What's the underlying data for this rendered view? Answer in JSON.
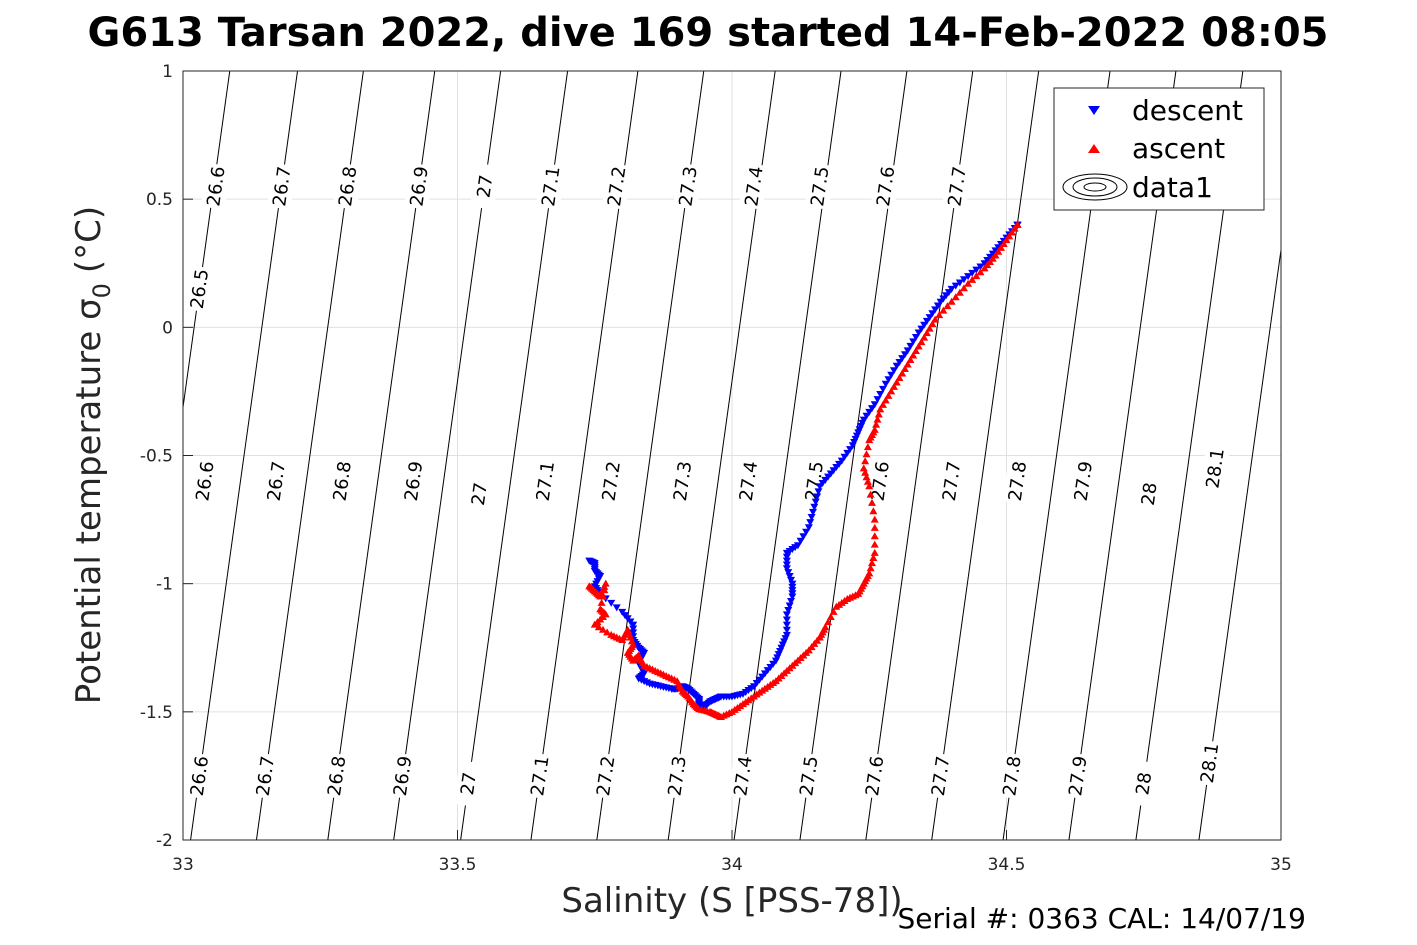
{
  "chart_data": {
    "type": "scatter",
    "title": "G613 Tarsan 2022, dive 169 started 14-Feb-2022 08:05",
    "xlabel": "Salinity (S [PSS-78])",
    "ylabel_main": "Potential temperature σ",
    "ylabel_sub": "0",
    "ylabel_unit": "(°C)",
    "xlim": [
      33,
      35
    ],
    "ylim": [
      -2,
      1
    ],
    "xticks": [
      "33",
      "33.5",
      "34",
      "34.5",
      "35"
    ],
    "yticks": [
      "1",
      "0.5",
      "0",
      "-0.5",
      "-1",
      "-1.5",
      "-2"
    ],
    "grid": true,
    "legend_position": "top-right",
    "legend": [
      "descent",
      "ascent",
      "data1"
    ],
    "footer": "Serial #: 0363  CAL: 14/07/19",
    "colors": {
      "descent": "#0000ff",
      "ascent": "#ff0000",
      "contour": "#000000",
      "grid": "#e0e0e0"
    },
    "contours": [
      {
        "level": "26.5",
        "label_positions": [
          [
            33.03,
            0.15
          ]
        ]
      },
      {
        "level": "26.6",
        "label_positions": [
          [
            33.06,
            0.55
          ],
          [
            33.04,
            -0.6
          ],
          [
            33.03,
            -1.75
          ]
        ]
      },
      {
        "level": "26.7",
        "label_positions": [
          [
            33.18,
            0.55
          ],
          [
            33.17,
            -0.6
          ],
          [
            33.15,
            -1.75
          ]
        ]
      },
      {
        "level": "26.8",
        "label_positions": [
          [
            33.3,
            0.55
          ],
          [
            33.29,
            -0.6
          ],
          [
            33.28,
            -1.75
          ]
        ]
      },
      {
        "level": "26.9",
        "label_positions": [
          [
            33.43,
            0.55
          ],
          [
            33.42,
            -0.6
          ],
          [
            33.4,
            -1.75
          ]
        ]
      },
      {
        "level": "27",
        "label_positions": [
          [
            33.55,
            0.55
          ],
          [
            33.54,
            -0.65
          ],
          [
            33.52,
            -1.78
          ]
        ]
      },
      {
        "level": "27.1",
        "label_positions": [
          [
            33.67,
            0.55
          ],
          [
            33.66,
            -0.6
          ],
          [
            33.65,
            -1.75
          ]
        ]
      },
      {
        "level": "27.2",
        "label_positions": [
          [
            33.79,
            0.55
          ],
          [
            33.78,
            -0.6
          ],
          [
            33.77,
            -1.75
          ]
        ]
      },
      {
        "level": "27.3",
        "label_positions": [
          [
            33.92,
            0.55
          ],
          [
            33.91,
            -0.6
          ],
          [
            33.9,
            -1.75
          ]
        ]
      },
      {
        "level": "27.4",
        "label_positions": [
          [
            34.04,
            0.55
          ],
          [
            34.03,
            -0.6
          ],
          [
            34.02,
            -1.75
          ]
        ]
      },
      {
        "level": "27.5",
        "label_positions": [
          [
            34.16,
            0.55
          ],
          [
            34.15,
            -0.6
          ],
          [
            34.14,
            -1.75
          ]
        ]
      },
      {
        "level": "27.6",
        "label_positions": [
          [
            34.28,
            0.55
          ],
          [
            34.27,
            -0.6
          ],
          [
            34.26,
            -1.75
          ]
        ]
      },
      {
        "level": "27.7",
        "label_positions": [
          [
            34.41,
            0.55
          ],
          [
            34.4,
            -0.6
          ],
          [
            34.38,
            -1.75
          ]
        ]
      },
      {
        "level": "27.8",
        "label_positions": [
          [
            34.52,
            -0.6
          ],
          [
            34.51,
            -1.75
          ]
        ]
      },
      {
        "level": "27.9",
        "label_positions": [
          [
            34.64,
            -0.6
          ],
          [
            34.63,
            -1.75
          ]
        ]
      },
      {
        "level": "28",
        "label_positions": [
          [
            34.76,
            -0.65
          ],
          [
            34.75,
            -1.78
          ]
        ]
      },
      {
        "level": "28.1",
        "label_positions": [
          [
            34.88,
            -0.55
          ],
          [
            34.87,
            -1.7
          ]
        ]
      }
    ],
    "series": [
      {
        "name": "descent",
        "marker": "triangle-down",
        "points": [
          [
            33.74,
            -0.91
          ],
          [
            33.75,
            -0.92
          ],
          [
            33.75,
            -0.95
          ],
          [
            33.76,
            -0.97
          ],
          [
            33.75,
            -1.01
          ],
          [
            33.76,
            -1.04
          ],
          [
            33.8,
            -1.11
          ],
          [
            33.82,
            -1.16
          ],
          [
            33.82,
            -1.22
          ],
          [
            33.83,
            -1.25
          ],
          [
            33.84,
            -1.27
          ],
          [
            33.83,
            -1.31
          ],
          [
            33.84,
            -1.35
          ],
          [
            33.83,
            -1.37
          ],
          [
            33.85,
            -1.39
          ],
          [
            33.87,
            -1.4
          ],
          [
            33.89,
            -1.41
          ],
          [
            33.9,
            -1.41
          ],
          [
            33.91,
            -1.4
          ],
          [
            33.92,
            -1.41
          ],
          [
            33.93,
            -1.43
          ],
          [
            33.94,
            -1.45
          ],
          [
            33.94,
            -1.47
          ],
          [
            33.95,
            -1.48
          ],
          [
            33.96,
            -1.46
          ],
          [
            33.97,
            -1.45
          ],
          [
            33.98,
            -1.44
          ],
          [
            34.0,
            -1.44
          ],
          [
            34.02,
            -1.43
          ],
          [
            34.04,
            -1.4
          ],
          [
            34.06,
            -1.35
          ],
          [
            34.08,
            -1.3
          ],
          [
            34.09,
            -1.25
          ],
          [
            34.1,
            -1.2
          ],
          [
            34.1,
            -1.12
          ],
          [
            34.11,
            -1.05
          ],
          [
            34.11,
            -1.0
          ],
          [
            34.1,
            -0.94
          ],
          [
            34.1,
            -0.88
          ],
          [
            34.12,
            -0.85
          ],
          [
            34.14,
            -0.78
          ],
          [
            34.15,
            -0.7
          ],
          [
            34.16,
            -0.62
          ],
          [
            34.18,
            -0.57
          ],
          [
            34.2,
            -0.52
          ],
          [
            34.22,
            -0.46
          ],
          [
            34.23,
            -0.41
          ],
          [
            34.24,
            -0.36
          ],
          [
            34.26,
            -0.3
          ],
          [
            34.28,
            -0.22
          ],
          [
            34.3,
            -0.15
          ],
          [
            34.32,
            -0.09
          ],
          [
            34.34,
            -0.02
          ],
          [
            34.36,
            0.04
          ],
          [
            34.38,
            0.1
          ],
          [
            34.4,
            0.15
          ],
          [
            34.43,
            0.2
          ],
          [
            34.46,
            0.25
          ],
          [
            34.48,
            0.3
          ],
          [
            34.5,
            0.35
          ],
          [
            34.52,
            0.4
          ]
        ]
      },
      {
        "name": "ascent",
        "marker": "triangle-up",
        "points": [
          [
            33.74,
            -1.01
          ],
          [
            33.75,
            -1.03
          ],
          [
            33.76,
            -1.05
          ],
          [
            33.77,
            -1.0
          ],
          [
            33.76,
            -1.1
          ],
          [
            33.77,
            -1.12
          ],
          [
            33.75,
            -1.16
          ],
          [
            33.78,
            -1.2
          ],
          [
            33.8,
            -1.22
          ],
          [
            33.81,
            -1.18
          ],
          [
            33.82,
            -1.24
          ],
          [
            33.81,
            -1.27
          ],
          [
            33.82,
            -1.3
          ],
          [
            33.83,
            -1.28
          ],
          [
            33.84,
            -1.32
          ],
          [
            33.86,
            -1.34
          ],
          [
            33.88,
            -1.36
          ],
          [
            33.9,
            -1.38
          ],
          [
            33.91,
            -1.42
          ],
          [
            33.92,
            -1.44
          ],
          [
            33.93,
            -1.47
          ],
          [
            33.94,
            -1.49
          ],
          [
            33.96,
            -1.5
          ],
          [
            33.97,
            -1.51
          ],
          [
            33.98,
            -1.52
          ],
          [
            34.0,
            -1.5
          ],
          [
            34.02,
            -1.47
          ],
          [
            34.04,
            -1.44
          ],
          [
            34.06,
            -1.41
          ],
          [
            34.08,
            -1.38
          ],
          [
            34.1,
            -1.34
          ],
          [
            34.12,
            -1.3
          ],
          [
            34.14,
            -1.26
          ],
          [
            34.16,
            -1.21
          ],
          [
            34.17,
            -1.17
          ],
          [
            34.19,
            -1.09
          ],
          [
            34.21,
            -1.06
          ],
          [
            34.23,
            -1.04
          ],
          [
            34.24,
            -1.0
          ],
          [
            34.25,
            -0.96
          ],
          [
            34.26,
            -0.88
          ],
          [
            34.26,
            -0.75
          ],
          [
            34.25,
            -0.62
          ],
          [
            34.24,
            -0.55
          ],
          [
            34.25,
            -0.44
          ],
          [
            34.26,
            -0.4
          ],
          [
            34.27,
            -0.32
          ],
          [
            34.29,
            -0.25
          ],
          [
            34.31,
            -0.18
          ],
          [
            34.33,
            -0.11
          ],
          [
            34.35,
            -0.04
          ],
          [
            34.37,
            0.03
          ],
          [
            34.4,
            0.1
          ],
          [
            34.43,
            0.17
          ],
          [
            34.46,
            0.23
          ],
          [
            34.48,
            0.28
          ],
          [
            34.5,
            0.34
          ],
          [
            34.52,
            0.4
          ]
        ]
      }
    ]
  }
}
